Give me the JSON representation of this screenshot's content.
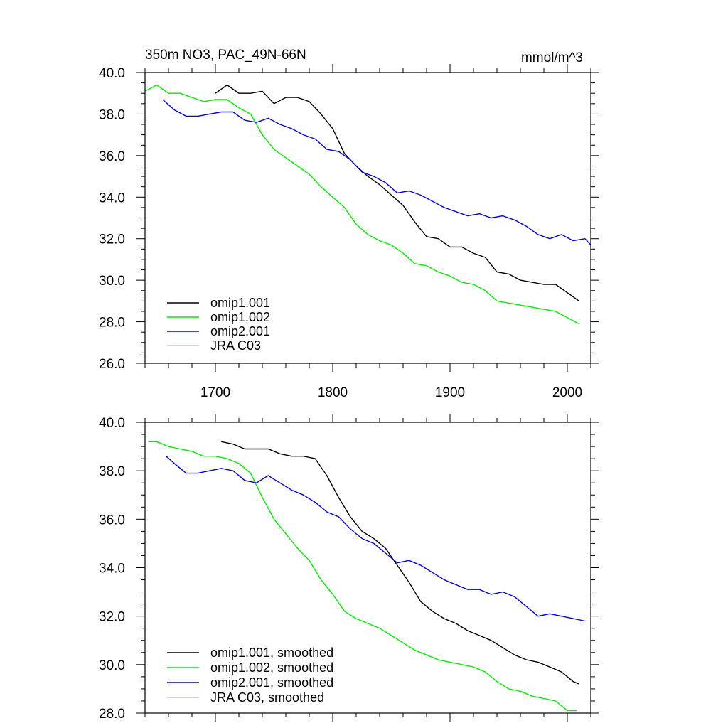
{
  "chart_data": [
    {
      "type": "line",
      "title": "350m NO3, PAC_49N-66N",
      "units": "mmol/m^3",
      "xlim": [
        1640,
        2020
      ],
      "ylim": [
        26,
        40
      ],
      "xticks": [
        1700,
        1800,
        1900,
        2000
      ],
      "xtick_labels": [
        "1700",
        "1800",
        "1900",
        "2000"
      ],
      "yticks": [
        26,
        28,
        30,
        32,
        34,
        36,
        38,
        40
      ],
      "ytick_labels": [
        "26.0",
        "28.0",
        "30.0",
        "32.0",
        "34.0",
        "36.0",
        "38.0",
        "40.0"
      ],
      "legend_position": "bottom-left",
      "series": [
        {
          "name": "omip1.001",
          "color": "#000000",
          "x": [
            1700,
            1710,
            1720,
            1730,
            1740,
            1750,
            1760,
            1770,
            1780,
            1790,
            1800,
            1810,
            1820,
            1830,
            1840,
            1850,
            1860,
            1870,
            1880,
            1890,
            1900,
            1910,
            1920,
            1930,
            1940,
            1950,
            1960,
            1970,
            1980,
            1990,
            2000,
            2010
          ],
          "y": [
            39.0,
            39.4,
            39.0,
            39.0,
            39.1,
            38.5,
            38.8,
            38.8,
            38.6,
            38.0,
            37.3,
            36.1,
            35.5,
            35.0,
            34.6,
            34.1,
            33.6,
            32.8,
            32.1,
            32.0,
            31.6,
            31.6,
            31.3,
            31.1,
            30.4,
            30.3,
            30.0,
            29.9,
            29.8,
            29.8,
            29.4,
            29.0
          ]
        },
        {
          "name": "omip1.002",
          "color": "#00ee00",
          "x": [
            1640,
            1650,
            1660,
            1670,
            1680,
            1690,
            1700,
            1710,
            1720,
            1730,
            1740,
            1750,
            1760,
            1770,
            1780,
            1790,
            1800,
            1810,
            1820,
            1830,
            1840,
            1850,
            1860,
            1870,
            1880,
            1890,
            1900,
            1910,
            1920,
            1930,
            1940,
            1950,
            1960,
            1970,
            1980,
            1990,
            2000,
            2010
          ],
          "y": [
            39.1,
            39.4,
            39.0,
            39.0,
            38.8,
            38.6,
            38.7,
            38.7,
            38.3,
            38.0,
            37.0,
            36.3,
            35.9,
            35.5,
            35.1,
            34.5,
            34.0,
            33.5,
            32.7,
            32.2,
            31.9,
            31.7,
            31.3,
            30.8,
            30.7,
            30.4,
            30.2,
            29.9,
            29.8,
            29.5,
            29.0,
            28.9,
            28.8,
            28.7,
            28.6,
            28.5,
            28.2,
            27.9
          ]
        },
        {
          "name": "omip2.001",
          "color": "#0000ee",
          "x": [
            1655,
            1665,
            1675,
            1685,
            1695,
            1705,
            1715,
            1725,
            1735,
            1745,
            1755,
            1765,
            1775,
            1785,
            1795,
            1805,
            1815,
            1825,
            1835,
            1845,
            1855,
            1865,
            1875,
            1885,
            1895,
            1905,
            1915,
            1925,
            1935,
            1945,
            1955,
            1965,
            1975,
            1985,
            1995,
            2005,
            2015,
            2020
          ],
          "y": [
            38.7,
            38.2,
            37.9,
            37.9,
            38.0,
            38.1,
            38.1,
            37.7,
            37.6,
            37.8,
            37.5,
            37.3,
            37.0,
            36.8,
            36.3,
            36.2,
            35.8,
            35.2,
            35.0,
            34.7,
            34.2,
            34.3,
            34.1,
            33.8,
            33.5,
            33.3,
            33.1,
            33.2,
            33.0,
            33.1,
            32.9,
            32.6,
            32.2,
            32.0,
            32.2,
            31.9,
            32.0,
            31.7
          ]
        },
        {
          "name": "JRA C03",
          "color": "#c8c8c8",
          "x": [],
          "y": []
        }
      ]
    },
    {
      "type": "line",
      "title": "",
      "xlim": [
        1640,
        2020
      ],
      "ylim": [
        28,
        40
      ],
      "xticks": [
        1700,
        1800,
        1900,
        2000
      ],
      "yticks": [
        28,
        30,
        32,
        34,
        36,
        38,
        40
      ],
      "ytick_labels": [
        "28.0",
        "30.0",
        "32.0",
        "34.0",
        "36.0",
        "38.0",
        "40.0"
      ],
      "legend_position": "bottom-left",
      "series": [
        {
          "name": "omip1.001, smoothed",
          "color": "#000000",
          "x": [
            1705,
            1715,
            1725,
            1735,
            1745,
            1755,
            1765,
            1775,
            1785,
            1795,
            1805,
            1815,
            1825,
            1835,
            1845,
            1855,
            1865,
            1875,
            1885,
            1895,
            1905,
            1915,
            1925,
            1935,
            1945,
            1955,
            1965,
            1975,
            1985,
            1995,
            2005,
            2010
          ],
          "y": [
            39.2,
            39.1,
            38.9,
            38.9,
            38.9,
            38.7,
            38.6,
            38.6,
            38.5,
            37.8,
            36.9,
            36.1,
            35.5,
            35.2,
            34.8,
            34.1,
            33.4,
            32.6,
            32.2,
            31.9,
            31.7,
            31.4,
            31.2,
            31.0,
            30.7,
            30.4,
            30.2,
            30.1,
            29.9,
            29.7,
            29.3,
            29.2
          ]
        },
        {
          "name": "omip1.002, smoothed",
          "color": "#00ee00",
          "x": [
            1643,
            1650,
            1660,
            1670,
            1680,
            1690,
            1700,
            1710,
            1720,
            1730,
            1740,
            1750,
            1760,
            1770,
            1780,
            1790,
            1800,
            1810,
            1820,
            1830,
            1840,
            1850,
            1860,
            1870,
            1880,
            1890,
            1900,
            1910,
            1920,
            1930,
            1940,
            1950,
            1960,
            1970,
            1980,
            1990,
            2000,
            2008
          ],
          "y": [
            39.2,
            39.2,
            39.0,
            38.9,
            38.8,
            38.6,
            38.6,
            38.5,
            38.3,
            37.9,
            36.9,
            36.0,
            35.4,
            34.8,
            34.3,
            33.5,
            32.9,
            32.2,
            31.9,
            31.7,
            31.5,
            31.2,
            30.9,
            30.6,
            30.4,
            30.2,
            30.1,
            30.0,
            29.9,
            29.7,
            29.3,
            29.0,
            28.9,
            28.7,
            28.6,
            28.5,
            28.1,
            28.1
          ]
        },
        {
          "name": "omip2.001, smoothed",
          "color": "#0000ee",
          "x": [
            1658,
            1665,
            1675,
            1685,
            1695,
            1705,
            1715,
            1725,
            1735,
            1745,
            1755,
            1765,
            1775,
            1785,
            1795,
            1805,
            1815,
            1825,
            1835,
            1845,
            1855,
            1865,
            1875,
            1885,
            1895,
            1905,
            1915,
            1925,
            1935,
            1945,
            1955,
            1965,
            1975,
            1985,
            1995,
            2005,
            2015
          ],
          "y": [
            38.6,
            38.3,
            37.9,
            37.9,
            38.0,
            38.1,
            38.0,
            37.6,
            37.5,
            37.8,
            37.5,
            37.2,
            37.0,
            36.7,
            36.3,
            36.1,
            35.6,
            35.2,
            35.0,
            34.6,
            34.2,
            34.3,
            34.1,
            33.8,
            33.5,
            33.3,
            33.1,
            33.1,
            32.9,
            33.0,
            32.8,
            32.4,
            32.0,
            32.1,
            32.0,
            31.9,
            31.8
          ]
        },
        {
          "name": "JRA C03, smoothed",
          "color": "#c8c8c8",
          "x": [],
          "y": []
        }
      ]
    }
  ]
}
